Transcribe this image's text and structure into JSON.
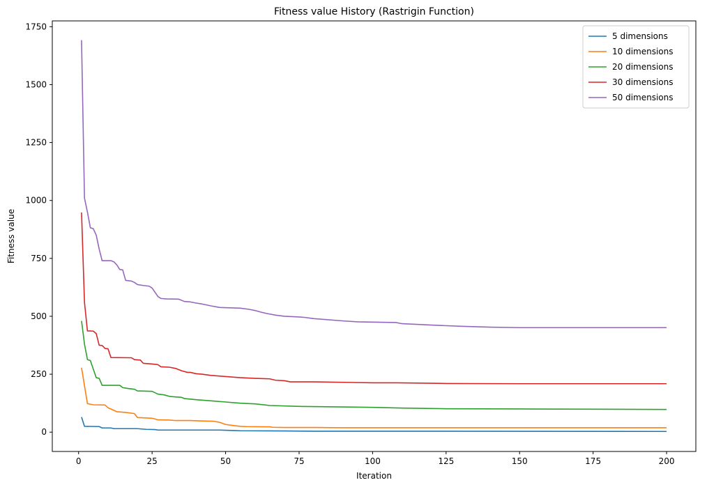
{
  "chart_data": {
    "type": "line",
    "title": "Fitness value History (Rastrigin Function)",
    "xlabel": "Iteration",
    "ylabel": "Fitness value",
    "xlim": [
      -8.95,
      209.95
    ],
    "ylim": [
      -83.5,
      1775
    ],
    "xticks": [
      0,
      25,
      50,
      75,
      100,
      125,
      150,
      175,
      200
    ],
    "yticks": [
      0,
      250,
      500,
      750,
      1000,
      1250,
      1500,
      1750
    ],
    "grid": false,
    "legend_position": "top-right",
    "series": [
      {
        "name": "5 dimensions",
        "color": "#1f77b4",
        "points": [
          [
            1,
            65
          ],
          [
            2,
            25
          ],
          [
            7,
            24
          ],
          [
            8,
            18
          ],
          [
            11,
            18
          ],
          [
            12,
            15
          ],
          [
            20,
            15
          ],
          [
            23,
            12
          ],
          [
            26,
            11
          ],
          [
            27,
            9
          ],
          [
            48,
            9
          ],
          [
            50,
            8
          ],
          [
            53,
            7
          ],
          [
            55,
            6
          ],
          [
            70,
            5
          ],
          [
            80,
            4
          ],
          [
            100,
            4
          ],
          [
            200,
            3
          ]
        ]
      },
      {
        "name": "10 dimensions",
        "color": "#ff7f0e",
        "points": [
          [
            1,
            278
          ],
          [
            3,
            123
          ],
          [
            5,
            118
          ],
          [
            9,
            117
          ],
          [
            10,
            105
          ],
          [
            11,
            100
          ],
          [
            13,
            88
          ],
          [
            16,
            85
          ],
          [
            19,
            80
          ],
          [
            20,
            63
          ],
          [
            25,
            60
          ],
          [
            27,
            53
          ],
          [
            31,
            52
          ],
          [
            33,
            50
          ],
          [
            38,
            50
          ],
          [
            40,
            49
          ],
          [
            43,
            48
          ],
          [
            46,
            47
          ],
          [
            48,
            42
          ],
          [
            50,
            33
          ],
          [
            53,
            28
          ],
          [
            55,
            25
          ],
          [
            57,
            24
          ],
          [
            65,
            23
          ],
          [
            66,
            21
          ],
          [
            70,
            20
          ],
          [
            80,
            20
          ],
          [
            90,
            19
          ],
          [
            120,
            19
          ],
          [
            200,
            19
          ]
        ]
      },
      {
        "name": "20 dimensions",
        "color": "#2ca02c",
        "points": [
          [
            1,
            480
          ],
          [
            2,
            380
          ],
          [
            3,
            313
          ],
          [
            4,
            309
          ],
          [
            6,
            235
          ],
          [
            7,
            232
          ],
          [
            8,
            202
          ],
          [
            14,
            202
          ],
          [
            15,
            192
          ],
          [
            17,
            188
          ],
          [
            19,
            185
          ],
          [
            20,
            178
          ],
          [
            25,
            176
          ],
          [
            27,
            164
          ],
          [
            29,
            161
          ],
          [
            31,
            154
          ],
          [
            35,
            150
          ],
          [
            36,
            145
          ],
          [
            40,
            140
          ],
          [
            45,
            135
          ],
          [
            50,
            130
          ],
          [
            55,
            125
          ],
          [
            60,
            122
          ],
          [
            65,
            115
          ],
          [
            75,
            111
          ],
          [
            100,
            107
          ],
          [
            110,
            104
          ],
          [
            125,
            101
          ],
          [
            150,
            100
          ],
          [
            175,
            99
          ],
          [
            200,
            98
          ]
        ]
      },
      {
        "name": "30 dimensions",
        "color": "#d62728",
        "points": [
          [
            1,
            948
          ],
          [
            2,
            560
          ],
          [
            3,
            437
          ],
          [
            5,
            436
          ],
          [
            6,
            425
          ],
          [
            7,
            375
          ],
          [
            8,
            374
          ],
          [
            9,
            361
          ],
          [
            10,
            360
          ],
          [
            11,
            322
          ],
          [
            18,
            321
          ],
          [
            19,
            313
          ],
          [
            21,
            311
          ],
          [
            22,
            297
          ],
          [
            25,
            294
          ],
          [
            27,
            291
          ],
          [
            28,
            282
          ],
          [
            31,
            280
          ],
          [
            33,
            275
          ],
          [
            35,
            265
          ],
          [
            37,
            258
          ],
          [
            38,
            258
          ],
          [
            40,
            252
          ],
          [
            42,
            250
          ],
          [
            45,
            245
          ],
          [
            50,
            240
          ],
          [
            55,
            235
          ],
          [
            60,
            232
          ],
          [
            65,
            230
          ],
          [
            67,
            224
          ],
          [
            70,
            222
          ],
          [
            72,
            217
          ],
          [
            80,
            217
          ],
          [
            100,
            213
          ],
          [
            108,
            213
          ],
          [
            125,
            210
          ],
          [
            150,
            209
          ],
          [
            175,
            209
          ],
          [
            200,
            209
          ]
        ]
      },
      {
        "name": "50 dimensions",
        "color": "#9467bd",
        "points": [
          [
            1,
            1692
          ],
          [
            2,
            1010
          ],
          [
            3,
            950
          ],
          [
            4,
            882
          ],
          [
            5,
            878
          ],
          [
            6,
            850
          ],
          [
            7,
            790
          ],
          [
            8,
            740
          ],
          [
            11,
            740
          ],
          [
            12,
            735
          ],
          [
            13,
            722
          ],
          [
            14,
            702
          ],
          [
            15,
            700
          ],
          [
            16,
            655
          ],
          [
            18,
            652
          ],
          [
            19,
            646
          ],
          [
            20,
            637
          ],
          [
            22,
            633
          ],
          [
            24,
            630
          ],
          [
            25,
            622
          ],
          [
            27,
            585
          ],
          [
            28,
            577
          ],
          [
            30,
            575
          ],
          [
            34,
            574
          ],
          [
            36,
            564
          ],
          [
            38,
            562
          ],
          [
            40,
            557
          ],
          [
            42,
            553
          ],
          [
            45,
            545
          ],
          [
            48,
            538
          ],
          [
            55,
            535
          ],
          [
            58,
            530
          ],
          [
            60,
            525
          ],
          [
            62,
            518
          ],
          [
            64,
            512
          ],
          [
            67,
            505
          ],
          [
            70,
            500
          ],
          [
            75,
            497
          ],
          [
            77,
            495
          ],
          [
            80,
            490
          ],
          [
            90,
            480
          ],
          [
            95,
            476
          ],
          [
            108,
            473
          ],
          [
            110,
            468
          ],
          [
            120,
            462
          ],
          [
            130,
            457
          ],
          [
            140,
            453
          ],
          [
            150,
            451
          ],
          [
            175,
            451
          ],
          [
            200,
            451
          ]
        ]
      }
    ]
  }
}
